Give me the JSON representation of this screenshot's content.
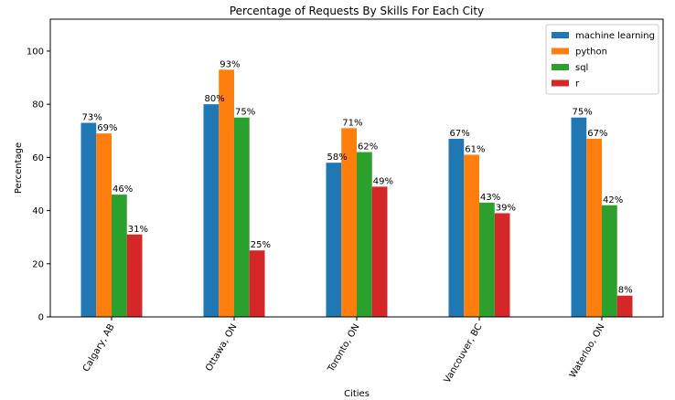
{
  "chart_data": {
    "type": "bar",
    "title": "Percentage of Requests By Skills For Each City",
    "xlabel": "Cities",
    "ylabel": "Percentage",
    "ylim": [
      0,
      112
    ],
    "yticks": [
      0,
      20,
      40,
      60,
      80,
      100
    ],
    "categories": [
      "Calgary, AB",
      "Ottawa, ON",
      "Toronto, ON",
      "Vancouver, BC",
      "Waterloo, ON"
    ],
    "series": [
      {
        "name": "machine learning",
        "color": "#1f77b4",
        "values": [
          73,
          80,
          58,
          67,
          75
        ],
        "labels": [
          "73%",
          "80%",
          "58%",
          "67%",
          "75%"
        ]
      },
      {
        "name": "python",
        "color": "#ff7f0e",
        "values": [
          69,
          93,
          71,
          61,
          67
        ],
        "labels": [
          "69%",
          "93%",
          "71%",
          "61%",
          "67%"
        ]
      },
      {
        "name": "sql",
        "color": "#2ca02c",
        "values": [
          46,
          75,
          62,
          43,
          42
        ],
        "labels": [
          "46%",
          "75%",
          "62%",
          "43%",
          "42%"
        ]
      },
      {
        "name": "r",
        "color": "#d62728",
        "values": [
          31,
          25,
          49,
          39,
          8
        ],
        "labels": [
          "31%",
          "25%",
          "49%",
          "39%",
          "8%"
        ]
      }
    ],
    "legend_position": "top-right",
    "grid": false
  }
}
